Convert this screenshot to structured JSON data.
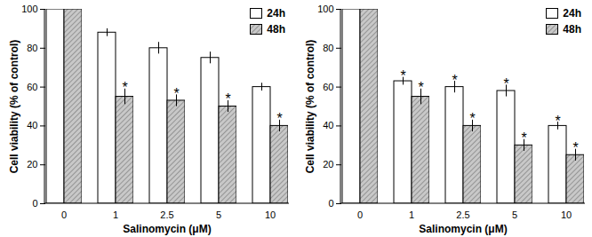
{
  "chart_data": [
    {
      "type": "bar",
      "categories": [
        "0",
        "1",
        "2.5",
        "5",
        "10"
      ],
      "xlabel": "Salinomycin (μM)",
      "ylabel": "Cell viability (% of control)",
      "ylim": [
        0,
        100
      ],
      "yticks": [
        0,
        20,
        40,
        60,
        80,
        100
      ],
      "legend": "top-right",
      "series": [
        {
          "name": "24h",
          "color": "#ffffff",
          "values": [
            100,
            88,
            80,
            75,
            60
          ],
          "errors": [
            0,
            2,
            3,
            3,
            2
          ],
          "annotations": [
            null,
            null,
            null,
            null,
            null
          ]
        },
        {
          "name": "48h",
          "color": "#c8c8c8",
          "values": [
            100,
            55,
            53,
            50,
            40
          ],
          "errors": [
            0,
            4,
            3,
            3,
            3
          ],
          "annotations": [
            null,
            "*",
            "*",
            "*",
            "*"
          ]
        }
      ]
    },
    {
      "type": "bar",
      "categories": [
        "0",
        "1",
        "2.5",
        "5",
        "10"
      ],
      "xlabel": "Salinomycin (μM)",
      "ylabel": "Cell viability (% of control)",
      "ylim": [
        0,
        100
      ],
      "yticks": [
        0,
        20,
        40,
        60,
        80,
        100
      ],
      "legend": "top-right",
      "series": [
        {
          "name": "24h",
          "color": "#ffffff",
          "values": [
            100,
            63,
            60,
            58,
            40
          ],
          "errors": [
            0,
            2,
            3,
            3,
            2
          ],
          "annotations": [
            null,
            "*",
            "*",
            "*",
            "*"
          ]
        },
        {
          "name": "48h",
          "color": "#c8c8c8",
          "values": [
            100,
            55,
            40,
            30,
            25
          ],
          "errors": [
            0,
            4,
            3,
            3,
            3
          ],
          "annotations": [
            null,
            "*",
            "*",
            "*",
            "*"
          ]
        }
      ]
    }
  ]
}
